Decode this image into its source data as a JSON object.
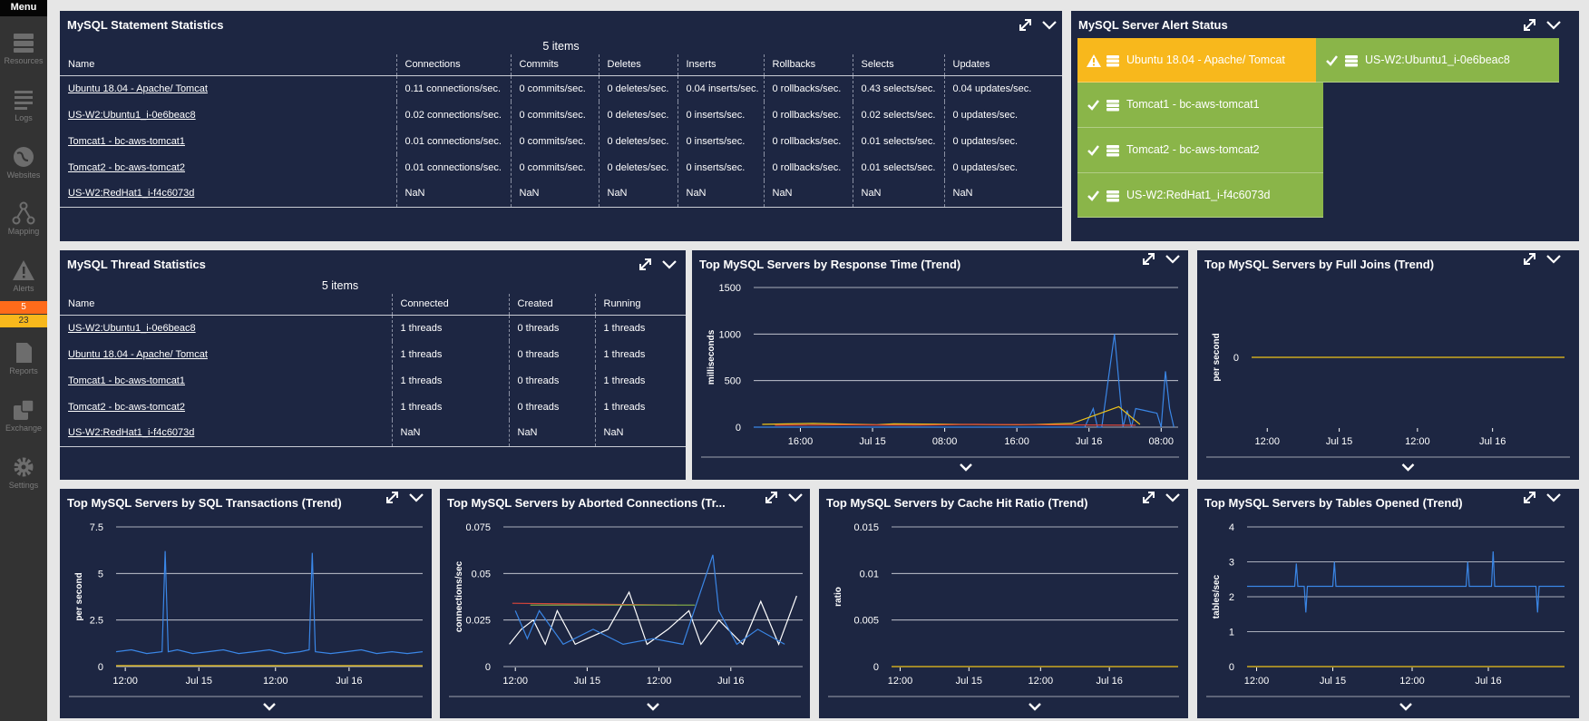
{
  "sidebar": {
    "menu_label": "Menu",
    "items": [
      {
        "label": "Resources",
        "icon": "server-stack-icon"
      },
      {
        "label": "Logs",
        "icon": "logs-icon"
      },
      {
        "label": "Websites",
        "icon": "globe-icon"
      },
      {
        "label": "Mapping",
        "icon": "mapping-icon"
      },
      {
        "label": "Alerts",
        "icon": "warning-icon"
      },
      {
        "label": "Reports",
        "icon": "report-icon"
      },
      {
        "label": "Exchange",
        "icon": "exchange-icon"
      },
      {
        "label": "Settings",
        "icon": "gear-icon"
      }
    ],
    "alert_counts": [
      {
        "value": "5",
        "color": "#ff6b1a"
      },
      {
        "value": "23",
        "color": "#f8b81c"
      }
    ]
  },
  "statement_stats": {
    "title": "MySQL Statement Statistics",
    "items_count": "5 items",
    "columns": [
      "Name",
      "Connections",
      "Commits",
      "Deletes",
      "Inserts",
      "Rollbacks",
      "Selects",
      "Updates"
    ],
    "rows": [
      [
        "Ubuntu 18.04 - Apache/ Tomcat",
        "0.11 connections/sec.",
        "0 commits/sec.",
        "0 deletes/sec.",
        "0.04 inserts/sec.",
        "0 rollbacks/sec.",
        "0.43 selects/sec.",
        "0.04 updates/sec."
      ],
      [
        "US-W2:Ubuntu1_i-0e6beac8",
        "0.02 connections/sec.",
        "0 commits/sec.",
        "0 deletes/sec.",
        "0 inserts/sec.",
        "0 rollbacks/sec.",
        "0.02 selects/sec.",
        "0 updates/sec."
      ],
      [
        "Tomcat1 - bc-aws-tomcat1",
        "0.01 connections/sec.",
        "0 commits/sec.",
        "0 deletes/sec.",
        "0 inserts/sec.",
        "0 rollbacks/sec.",
        "0.01 selects/sec.",
        "0 updates/sec."
      ],
      [
        "Tomcat2 - bc-aws-tomcat2",
        "0.01 connections/sec.",
        "0 commits/sec.",
        "0 deletes/sec.",
        "0 inserts/sec.",
        "0 rollbacks/sec.",
        "0.01 selects/sec.",
        "0 updates/sec."
      ],
      [
        "US-W2:RedHat1_i-f4c6073d",
        "NaN",
        "NaN",
        "NaN",
        "NaN",
        "NaN",
        "NaN",
        "NaN"
      ]
    ]
  },
  "alert_status": {
    "title": "MySQL Server Alert Status",
    "colors": {
      "warning": "#f8b81c",
      "ok": "#8ab549"
    },
    "tiles": [
      {
        "label": "Ubuntu 18.04 - Apache/ Tomcat",
        "status": "warning"
      },
      {
        "label": "US-W2:Ubuntu1_i-0e6beac8",
        "status": "ok"
      },
      {
        "label": "Tomcat1 - bc-aws-tomcat1",
        "status": "ok"
      },
      {
        "label": "Tomcat2 - bc-aws-tomcat2",
        "status": "ok"
      },
      {
        "label": "US-W2:RedHat1_i-f4c6073d",
        "status": "ok"
      }
    ]
  },
  "thread_stats": {
    "title": "MySQL Thread Statistics",
    "items_count": "5 items",
    "columns": [
      "Name",
      "Connected",
      "Created",
      "Running"
    ],
    "rows": [
      [
        "US-W2:Ubuntu1_i-0e6beac8",
        "1 threads",
        "0 threads",
        "1 threads"
      ],
      [
        "Ubuntu 18.04 - Apache/ Tomcat",
        "1 threads",
        "0 threads",
        "1 threads"
      ],
      [
        "Tomcat1 - bc-aws-tomcat1",
        "1 threads",
        "0 threads",
        "1 threads"
      ],
      [
        "Tomcat2 - bc-aws-tomcat2",
        "1 threads",
        "0 threads",
        "1 threads"
      ],
      [
        "US-W2:RedHat1_i-f4c6073d",
        "NaN",
        "NaN",
        "NaN"
      ]
    ]
  },
  "chart_data": [
    {
      "type": "line",
      "title": "Top MySQL Servers by Response Time (Trend)",
      "ylabel": "milliseconds",
      "ylim": [
        0,
        1500
      ],
      "yticks": [
        "1500",
        "1000",
        "500",
        "0"
      ],
      "xticks": [
        "16:00",
        "Jul 15",
        "08:00",
        "16:00",
        "Jul 16",
        "08:00"
      ],
      "xdomain": [
        0,
        100
      ],
      "xtick_pos": [
        11,
        28,
        45,
        62,
        79,
        96
      ],
      "grid": true,
      "series": [
        {
          "color": "#3a86e6",
          "x": [
            0,
            10,
            20,
            30,
            40,
            50,
            60,
            65,
            68,
            70,
            72,
            75,
            78,
            80,
            81,
            82,
            85,
            87,
            88,
            89,
            90,
            92,
            95,
            96,
            97,
            98,
            99
          ],
          "y": [
            0,
            0,
            0,
            0,
            0,
            0,
            0,
            0,
            0,
            0,
            0,
            0,
            0,
            200,
            0,
            0,
            1000,
            0,
            180,
            0,
            200,
            180,
            150,
            0,
            600,
            200,
            0
          ]
        },
        {
          "color": "#f0c419",
          "x": [
            2,
            14,
            29,
            33,
            47,
            63,
            75,
            86,
            91
          ],
          "y": [
            30,
            40,
            25,
            35,
            30,
            25,
            40,
            220,
            30
          ]
        },
        {
          "color": "#d8453a",
          "x": [
            5,
            21,
            38,
            52,
            70,
            90
          ],
          "y": [
            20,
            25,
            20,
            30,
            25,
            20
          ]
        }
      ]
    },
    {
      "type": "line",
      "title": "Top MySQL Servers by Full Joins (Trend)",
      "ylabel": "per second",
      "ylim": [
        -1,
        1
      ],
      "yticks": [
        "0"
      ],
      "ytick_values": [
        0
      ],
      "xticks": [
        "12:00",
        "Jul 15",
        "12:00",
        "Jul 16"
      ],
      "xdomain": [
        0,
        100
      ],
      "xtick_pos": [
        5,
        28,
        53,
        77
      ],
      "grid": true,
      "series": [
        {
          "color": "#f0c419",
          "x": [
            0,
            100
          ],
          "y": [
            0,
            0
          ]
        }
      ]
    },
    {
      "type": "line",
      "title": "Top MySQL Servers by SQL Transactions (Trend)",
      "ylabel": "per second",
      "ylim": [
        0,
        7.5
      ],
      "yticks": [
        "7.5",
        "5",
        "2.5",
        "0"
      ],
      "xticks": [
        "12:00",
        "Jul 15",
        "12:00",
        "Jul 16"
      ],
      "xdomain": [
        0,
        100
      ],
      "xtick_pos": [
        3,
        27,
        52,
        76
      ],
      "grid": true,
      "series": [
        {
          "color": "#3a86e6",
          "x": [
            0,
            5,
            10,
            15,
            16,
            17,
            20,
            25,
            30,
            35,
            40,
            45,
            50,
            55,
            60,
            63,
            64,
            65,
            70,
            75,
            80,
            85,
            90,
            95,
            100
          ],
          "y": [
            0.8,
            0.9,
            0.7,
            0.8,
            6.2,
            0.8,
            0.9,
            0.7,
            0.8,
            0.9,
            0.7,
            0.8,
            0.9,
            0.7,
            0.8,
            0.9,
            6.1,
            0.8,
            0.7,
            0.8,
            0.9,
            0.7,
            0.8,
            0.7,
            0.8
          ]
        },
        {
          "color": "#f0c419",
          "x": [
            0,
            100
          ],
          "y": [
            0.05,
            0.05
          ]
        }
      ]
    },
    {
      "type": "line",
      "title": "Top MySQL Servers by Aborted Connections (Tr...",
      "ylabel": "connections/sec",
      "ylim": [
        0,
        0.075
      ],
      "yticks": [
        "0.075",
        "0.05",
        "0.025",
        "0"
      ],
      "xticks": [
        "12:00",
        "Jul 15",
        "12:00",
        "Jul 16"
      ],
      "xdomain": [
        0,
        100
      ],
      "xtick_pos": [
        4,
        28,
        52,
        76
      ],
      "grid": true,
      "series": [
        {
          "color": "#ffffff",
          "x": [
            2,
            6,
            10,
            14,
            18,
            24,
            28,
            35,
            42,
            48,
            55,
            62,
            66,
            72,
            80,
            86,
            92,
            98
          ],
          "y": [
            0.012,
            0.02,
            0.025,
            0.012,
            0.03,
            0.012,
            0.015,
            0.02,
            0.04,
            0.012,
            0.02,
            0.03,
            0.012,
            0.025,
            0.012,
            0.035,
            0.012,
            0.038
          ]
        },
        {
          "color": "#3a86e6",
          "x": [
            4,
            8,
            12,
            20,
            30,
            40,
            50,
            60,
            70,
            72,
            78,
            85,
            94
          ],
          "y": [
            0.03,
            0.015,
            0.03,
            0.012,
            0.02,
            0.012,
            0.015,
            0.012,
            0.06,
            0.03,
            0.012,
            0.02,
            0.012
          ]
        },
        {
          "color": "#d8453a",
          "x": [
            3,
            58
          ],
          "y": [
            0.034,
            0.033
          ]
        },
        {
          "color": "#8ab549",
          "x": [
            9,
            64
          ],
          "y": [
            0.033,
            0.033
          ]
        }
      ]
    },
    {
      "type": "line",
      "title": "Top MySQL Servers by Cache Hit Ratio (Trend)",
      "ylabel": "ratio",
      "ylim": [
        0,
        0.015
      ],
      "yticks": [
        "0.015",
        "0.01",
        "0.005",
        "0"
      ],
      "xticks": [
        "12:00",
        "Jul 15",
        "12:00",
        "Jul 16"
      ],
      "xdomain": [
        0,
        100
      ],
      "xtick_pos": [
        3,
        27,
        52,
        76
      ],
      "grid": true,
      "series": [
        {
          "color": "#f0c419",
          "x": [
            0,
            100
          ],
          "y": [
            0,
            0
          ]
        }
      ]
    },
    {
      "type": "line",
      "title": "Top MySQL Servers by Tables Opened (Trend)",
      "ylabel": "tables/sec",
      "ylim": [
        0,
        4
      ],
      "yticks": [
        "4",
        "3",
        "2",
        "1",
        "0"
      ],
      "xticks": [
        "12:00",
        "Jul 15",
        "12:00",
        "Jul 16"
      ],
      "xdomain": [
        0,
        100
      ],
      "xtick_pos": [
        3,
        27,
        52,
        76
      ],
      "grid": true,
      "series": [
        {
          "color": "#3a86e6",
          "x": [
            0,
            5,
            10,
            15,
            15.5,
            16,
            18,
            18.5,
            19,
            25,
            27,
            27.5,
            28,
            40,
            50,
            60,
            69,
            69.5,
            70,
            77,
            77.5,
            78,
            85,
            90,
            91,
            91.5,
            92,
            100
          ],
          "y": [
            2.3,
            2.3,
            2.3,
            2.3,
            2.95,
            2.3,
            2.3,
            1.55,
            2.3,
            2.3,
            2.3,
            3.0,
            2.3,
            2.3,
            2.3,
            2.3,
            2.3,
            3.0,
            2.3,
            2.3,
            3.3,
            2.3,
            2.3,
            2.3,
            2.3,
            1.55,
            2.3,
            2.3
          ]
        },
        {
          "color": "#f0c419",
          "x": [
            0,
            100
          ],
          "y": [
            0,
            0
          ]
        }
      ]
    }
  ]
}
